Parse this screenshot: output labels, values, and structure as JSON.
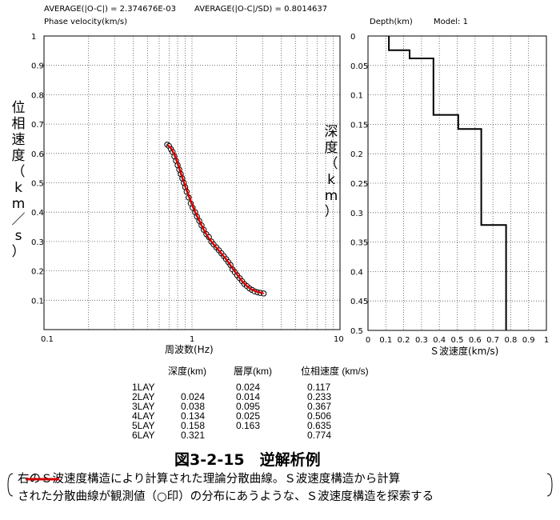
{
  "header": {
    "avg1": "AVERAGE(|O-C|) = 2.374676E-03",
    "avg2": "AVERAGE(|O-C|/SD) = 0.8014637",
    "phase_velocity_label": "Phase velocity(km/s)",
    "depth_label": "Depth(km)",
    "model_label": "Model: 1"
  },
  "left_axis_label": [
    "位",
    "相",
    "速",
    "度",
    "（",
    "k",
    "m",
    "／",
    "s",
    "）"
  ],
  "right_axis_label": [
    "深",
    "度",
    "（",
    "k",
    "m",
    "）"
  ],
  "colors": {
    "theory": "#d00000",
    "observed": "#000000",
    "grid": "#555555"
  },
  "chart_data": [
    {
      "type": "scatter",
      "xlabel": "周波数(Hz)",
      "xscale": "log",
      "xlim": [
        0.1,
        10
      ],
      "ylim": [
        0,
        1
      ],
      "xticks": [
        "0.1",
        "1",
        "10"
      ],
      "yticks": [
        "1",
        "0.9",
        "0.8",
        "0.7",
        "0.6",
        "0.5",
        "0.4",
        "0.3",
        "0.2",
        "0.1"
      ],
      "series": [
        {
          "kind": "observed-circles",
          "x": [
            0.68,
            0.7,
            0.72,
            0.74,
            0.76,
            0.78,
            0.8,
            0.82,
            0.84,
            0.86,
            0.88,
            0.9,
            0.92,
            0.95,
            0.98,
            1.01,
            1.05,
            1.08,
            1.12,
            1.16,
            1.2,
            1.25,
            1.3,
            1.35,
            1.4,
            1.46,
            1.52,
            1.58,
            1.64,
            1.7,
            1.76,
            1.82,
            1.88,
            1.95,
            2.02,
            2.1,
            2.18,
            2.26,
            2.35,
            2.45,
            2.55,
            2.65,
            2.78,
            2.9,
            3.05
          ],
          "y": [
            0.63,
            0.625,
            0.615,
            0.605,
            0.59,
            0.575,
            0.56,
            0.545,
            0.53,
            0.515,
            0.5,
            0.485,
            0.47,
            0.45,
            0.43,
            0.415,
            0.4,
            0.385,
            0.37,
            0.355,
            0.34,
            0.325,
            0.315,
            0.3,
            0.29,
            0.28,
            0.27,
            0.26,
            0.25,
            0.24,
            0.23,
            0.22,
            0.205,
            0.195,
            0.185,
            0.175,
            0.165,
            0.155,
            0.148,
            0.14,
            0.135,
            0.13,
            0.127,
            0.125,
            0.123
          ]
        },
        {
          "kind": "theoretical-curve",
          "x": [
            0.68,
            0.72,
            0.76,
            0.8,
            0.85,
            0.9,
            0.95,
            1.0,
            1.05,
            1.1,
            1.2,
            1.3,
            1.4,
            1.5,
            1.6,
            1.7,
            1.8,
            1.9,
            2.0,
            2.1,
            2.2,
            2.35,
            2.5,
            2.7,
            2.9,
            3.05
          ],
          "y": [
            0.63,
            0.618,
            0.595,
            0.565,
            0.525,
            0.488,
            0.455,
            0.425,
            0.4,
            0.378,
            0.34,
            0.31,
            0.29,
            0.272,
            0.255,
            0.24,
            0.222,
            0.205,
            0.19,
            0.175,
            0.162,
            0.148,
            0.138,
            0.13,
            0.126,
            0.123
          ]
        }
      ]
    },
    {
      "type": "line",
      "xlabel": "Ｓ波速度(km/s)",
      "xlim": [
        0,
        1
      ],
      "ylim": [
        0,
        0.5
      ],
      "xticks": [
        "0",
        "0.1",
        "0.2",
        "0.3",
        "0.4",
        "0.5",
        "0.6",
        "0.7",
        "0.8",
        "0.9",
        "1"
      ],
      "yticks": [
        "0",
        "0.05",
        "0.1",
        "0.15",
        "0.2",
        "0.25",
        "0.3",
        "0.35",
        "0.4",
        "0.45",
        "0.5"
      ],
      "series": [
        {
          "kind": "velocity-profile",
          "vs": [
            0.117,
            0.233,
            0.367,
            0.506,
            0.635,
            0.774
          ],
          "top_depth": [
            0,
            0.024,
            0.038,
            0.134,
            0.158,
            0.321
          ]
        }
      ]
    }
  ],
  "table": {
    "headers": {
      "depth": "深度(km)",
      "thick": "層厚(km)",
      "vel": "位相速度 (km/s)"
    },
    "layers": [
      "1LAY",
      "2LAY",
      "3LAY",
      "4LAY",
      "5LAY",
      "6LAY"
    ],
    "depth": [
      "",
      "0.024",
      "0.038",
      "0.134",
      "0.158",
      "0.321"
    ],
    "thickness": [
      "0.024",
      "0.014",
      "0.095",
      "0.025",
      "0.163",
      ""
    ],
    "velocity": [
      "0.117",
      "0.233",
      "0.367",
      "0.506",
      "0.635",
      "0.774"
    ]
  },
  "figure_title": "図3-2-15　逆解析例",
  "caption": {
    "line1": "右のＳ波速度構造により計算された理論分散曲線。Ｓ波速度構造から計算",
    "line2": "された分散曲線が観測値（○印）の分布にあうような、Ｓ波速度構造を探索する"
  }
}
